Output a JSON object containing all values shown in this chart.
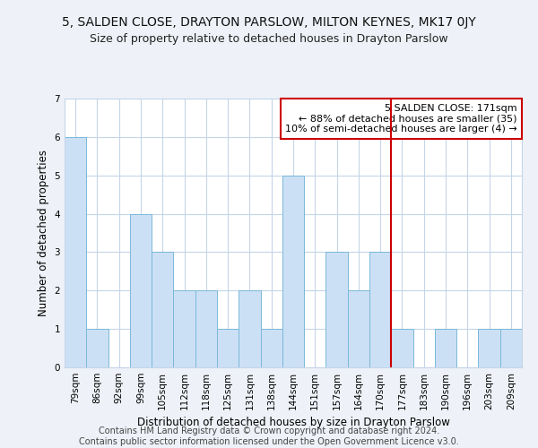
{
  "title": "5, SALDEN CLOSE, DRAYTON PARSLOW, MILTON KEYNES, MK17 0JY",
  "subtitle": "Size of property relative to detached houses in Drayton Parslow",
  "xlabel": "Distribution of detached houses by size in Drayton Parslow",
  "ylabel": "Number of detached properties",
  "categories": [
    "79sqm",
    "86sqm",
    "92sqm",
    "99sqm",
    "105sqm",
    "112sqm",
    "118sqm",
    "125sqm",
    "131sqm",
    "138sqm",
    "144sqm",
    "151sqm",
    "157sqm",
    "164sqm",
    "170sqm",
    "177sqm",
    "183sqm",
    "190sqm",
    "196sqm",
    "203sqm",
    "209sqm"
  ],
  "values": [
    6,
    1,
    0,
    4,
    3,
    2,
    2,
    1,
    2,
    1,
    5,
    0,
    3,
    2,
    3,
    1,
    0,
    1,
    0,
    1,
    1
  ],
  "bar_color": "#cce0f5",
  "bar_edge_color": "#7ab8d9",
  "highlight_line_index": 14,
  "highlight_line_color": "#cc0000",
  "annotation_text": "5 SALDEN CLOSE: 171sqm\n← 88% of detached houses are smaller (35)\n10% of semi-detached houses are larger (4) →",
  "annotation_box_color": "#ffffff",
  "annotation_box_edge_color": "#cc0000",
  "ylim": [
    0,
    7
  ],
  "yticks": [
    0,
    1,
    2,
    3,
    4,
    5,
    6,
    7
  ],
  "footer_line1": "Contains HM Land Registry data © Crown copyright and database right 2024.",
  "footer_line2": "Contains public sector information licensed under the Open Government Licence v3.0.",
  "bg_color": "#eef2f8",
  "plot_bg_color": "#ffffff",
  "grid_color": "#c5d5e8",
  "title_fontsize": 10,
  "subtitle_fontsize": 9,
  "axis_label_fontsize": 8.5,
  "tick_fontsize": 7.5,
  "annotation_fontsize": 8,
  "footer_fontsize": 7
}
